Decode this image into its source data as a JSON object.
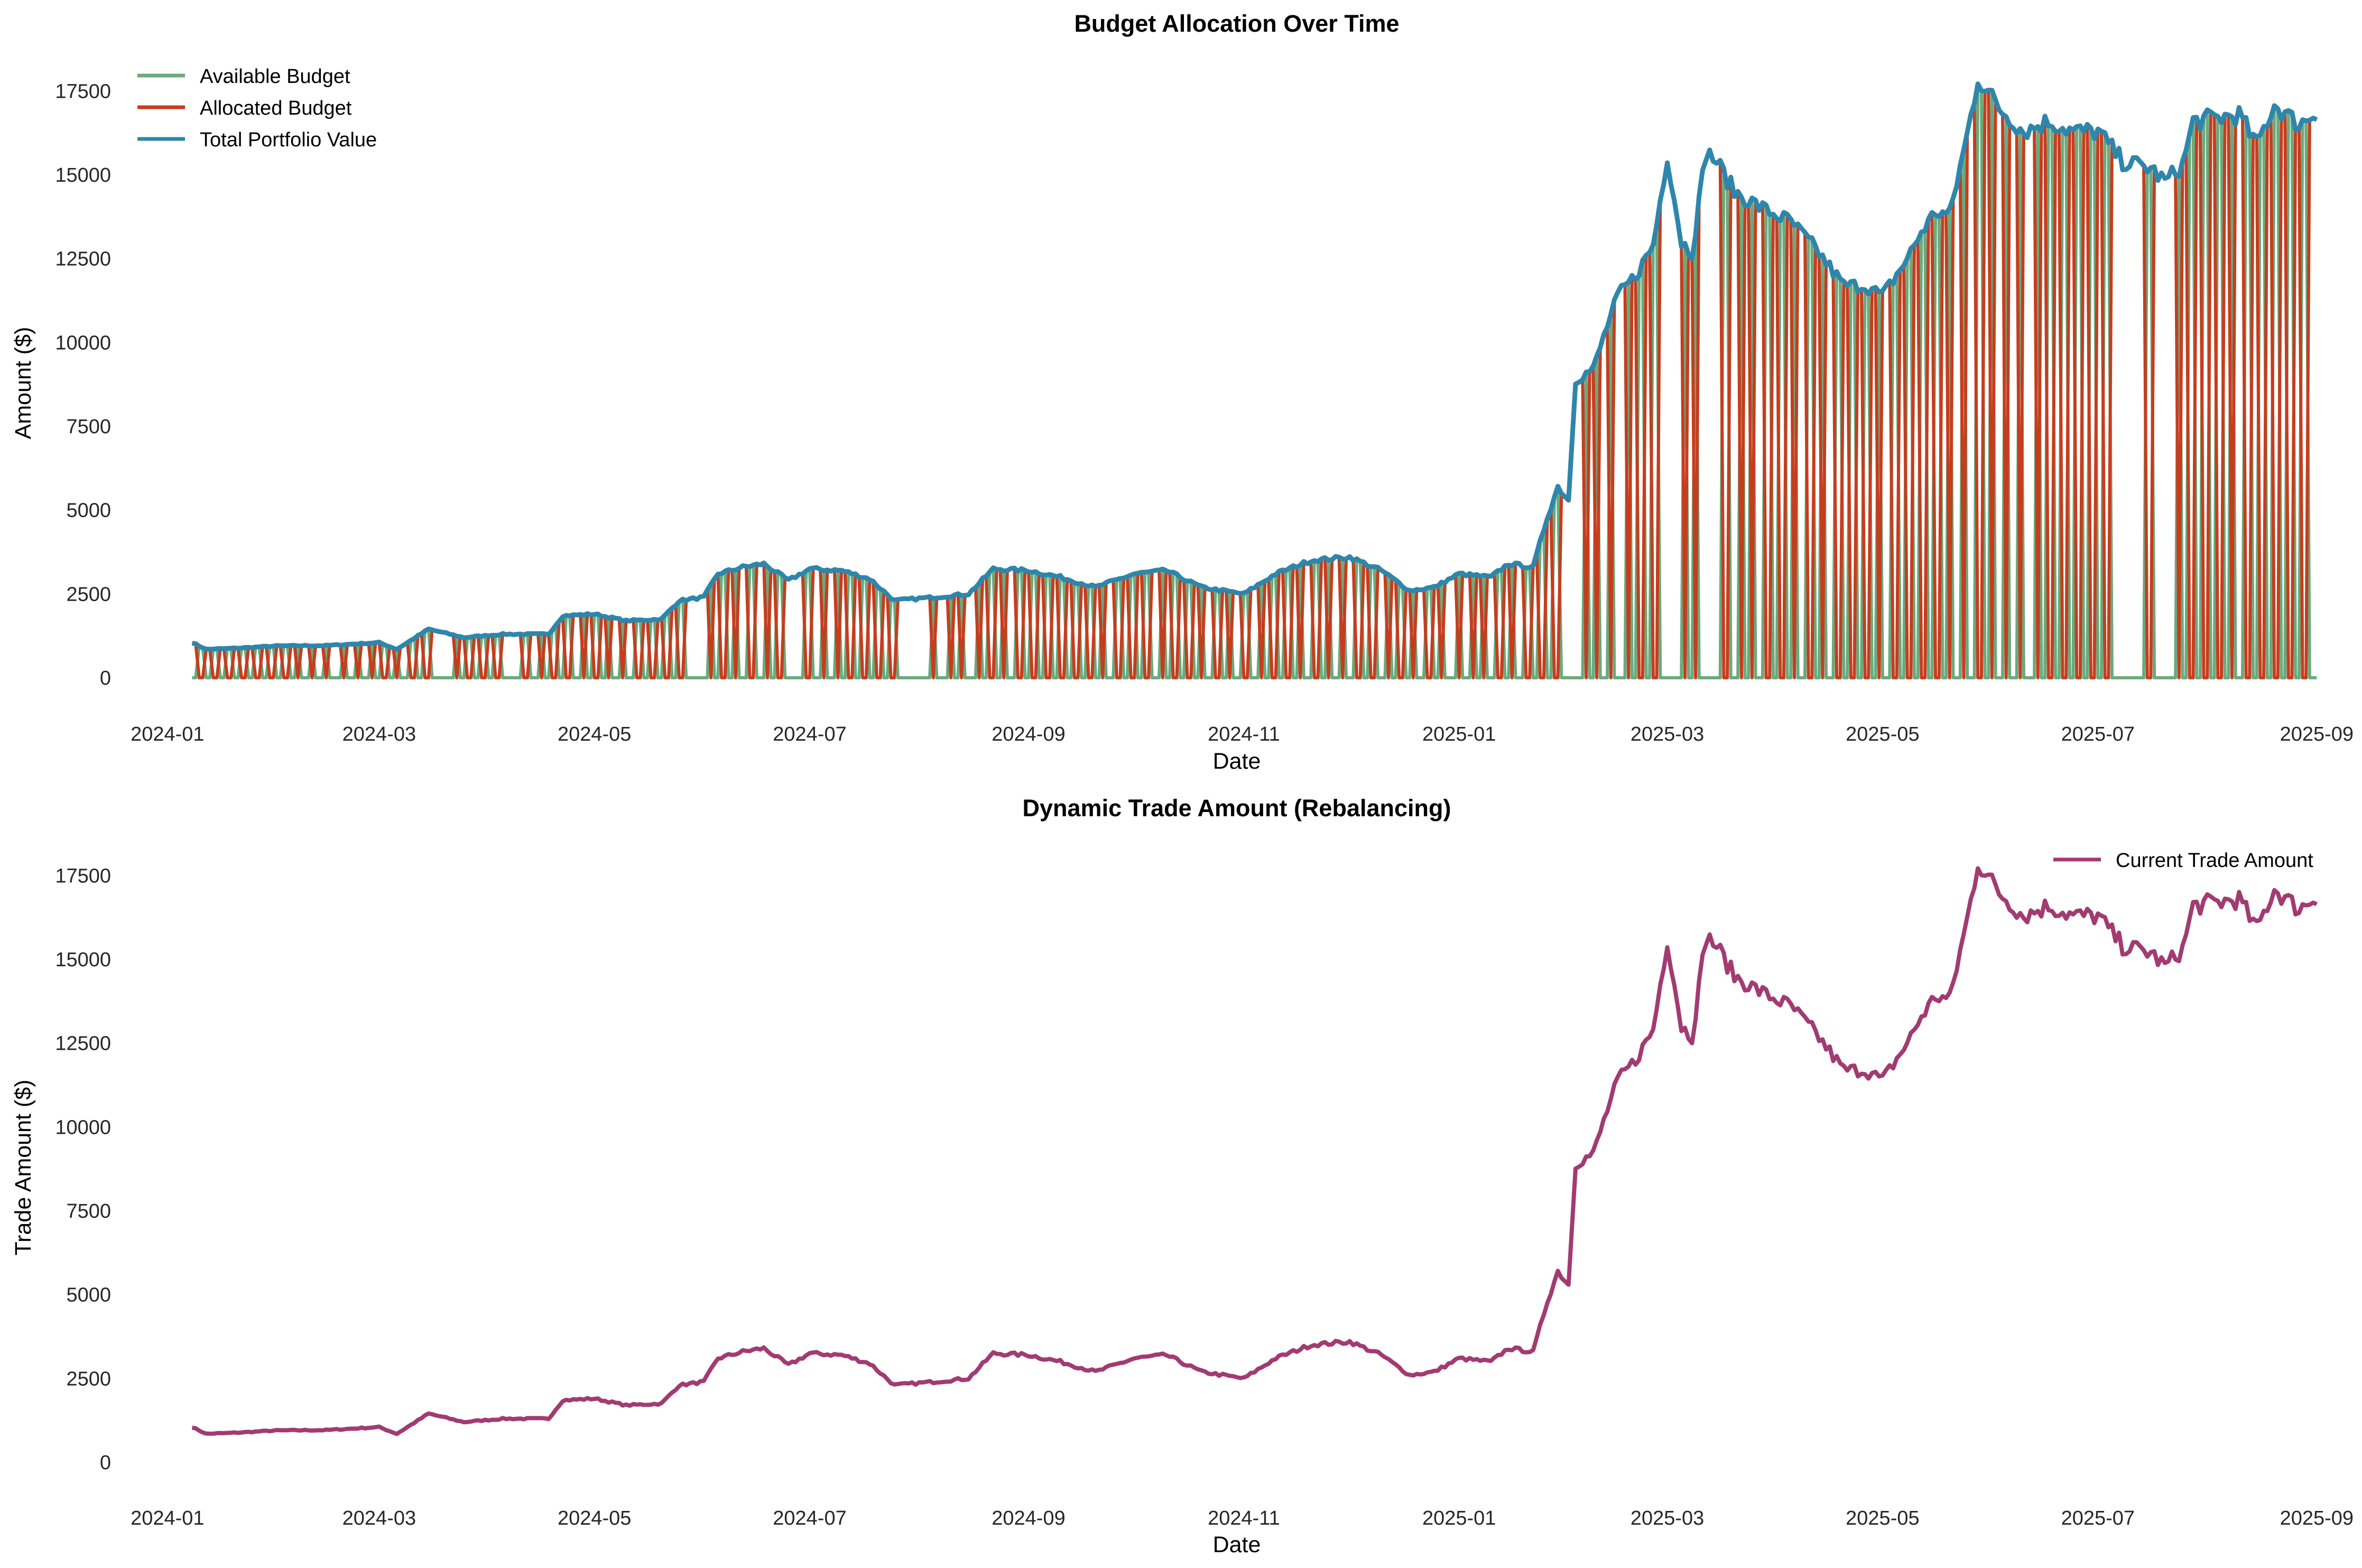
{
  "colors": {
    "available": "#6aaa7e",
    "allocated": "#c63d1e",
    "total": "#2e86ab",
    "trade": "#a23b72",
    "text": "#262626"
  },
  "chart_data": [
    {
      "type": "line",
      "title": "Budget Allocation Over Time",
      "xlabel": "Date",
      "ylabel": "Amount ($)",
      "x_ticks": [
        "2024-01",
        "2024-03",
        "2024-05",
        "2024-07",
        "2024-09",
        "2024-11",
        "2025-01",
        "2025-03",
        "2025-05",
        "2025-07",
        "2025-09"
      ],
      "y_ticks": [
        "0",
        "2500",
        "5000",
        "7500",
        "10000",
        "12500",
        "15000",
        "17500"
      ],
      "xlim": [
        "2023-12-22",
        "2025-09-08"
      ],
      "ylim": [
        -900,
        18800
      ],
      "grid": false,
      "legend_position": "top-left",
      "legend": [
        "Available Budget",
        "Allocated Budget",
        "Total Portfolio Value"
      ],
      "series": [
        {
          "name": "Available Budget",
          "note_pattern": "complementary"
        },
        {
          "name": "Allocated Budget"
        },
        {
          "name": "Total Portfolio Value"
        }
      ],
      "total_portfolio_value": [
        [
          "2024-01-08",
          1050
        ],
        [
          "2024-01-12",
          850
        ],
        [
          "2024-01-20",
          880
        ],
        [
          "2024-02-01",
          950
        ],
        [
          "2024-02-15",
          960
        ],
        [
          "2024-03-01",
          1050
        ],
        [
          "2024-03-06",
          850
        ],
        [
          "2024-03-15",
          1450
        ],
        [
          "2024-03-25",
          1200
        ],
        [
          "2024-04-05",
          1300
        ],
        [
          "2024-04-18",
          1300
        ],
        [
          "2024-04-22",
          1850
        ],
        [
          "2024-05-01",
          1900
        ],
        [
          "2024-05-10",
          1700
        ],
        [
          "2024-05-20",
          1750
        ],
        [
          "2024-05-25",
          2300
        ],
        [
          "2024-06-01",
          2400
        ],
        [
          "2024-06-05",
          3100
        ],
        [
          "2024-06-12",
          3300
        ],
        [
          "2024-06-18",
          3400
        ],
        [
          "2024-06-25",
          2900
        ],
        [
          "2024-07-01",
          3250
        ],
        [
          "2024-07-10",
          3200
        ],
        [
          "2024-07-18",
          2950
        ],
        [
          "2024-07-25",
          2300
        ],
        [
          "2024-08-05",
          2400
        ],
        [
          "2024-08-15",
          2500
        ],
        [
          "2024-08-22",
          3250
        ],
        [
          "2024-09-01",
          3200
        ],
        [
          "2024-09-10",
          3000
        ],
        [
          "2024-09-20",
          2700
        ],
        [
          "2024-10-01",
          3100
        ],
        [
          "2024-10-10",
          3200
        ],
        [
          "2024-10-20",
          2700
        ],
        [
          "2024-11-01",
          2500
        ],
        [
          "2024-11-10",
          3100
        ],
        [
          "2024-11-20",
          3500
        ],
        [
          "2024-12-01",
          3600
        ],
        [
          "2024-12-10",
          3200
        ],
        [
          "2024-12-18",
          2600
        ],
        [
          "2024-12-25",
          2700
        ],
        [
          "2025-01-01",
          3100
        ],
        [
          "2025-01-10",
          3000
        ],
        [
          "2025-01-15",
          3400
        ],
        [
          "2025-01-22",
          3300
        ],
        [
          "2025-01-26",
          4800
        ],
        [
          "2025-01-29",
          5700
        ],
        [
          "2025-02-01",
          5300
        ],
        [
          "2025-02-03",
          8900
        ],
        [
          "2025-02-08",
          9200
        ],
        [
          "2025-02-12",
          10500
        ],
        [
          "2025-02-15",
          11400
        ],
        [
          "2025-02-20",
          12000
        ],
        [
          "2025-02-25",
          12900
        ],
        [
          "2025-03-01",
          15600
        ],
        [
          "2025-03-05",
          13000
        ],
        [
          "2025-03-08",
          12700
        ],
        [
          "2025-03-12",
          15700
        ],
        [
          "2025-03-15",
          15400
        ],
        [
          "2025-03-20",
          14500
        ],
        [
          "2025-03-28",
          14000
        ],
        [
          "2025-04-05",
          13600
        ],
        [
          "2025-04-12",
          12800
        ],
        [
          "2025-04-20",
          11700
        ],
        [
          "2025-04-26",
          11700
        ],
        [
          "2025-05-01",
          11400
        ],
        [
          "2025-05-08",
          12500
        ],
        [
          "2025-05-12",
          13300
        ],
        [
          "2025-05-16",
          13900
        ],
        [
          "2025-05-20",
          13800
        ],
        [
          "2025-05-25",
          16200
        ],
        [
          "2025-05-28",
          17900
        ],
        [
          "2025-06-03",
          17000
        ],
        [
          "2025-06-10",
          16300
        ],
        [
          "2025-06-17",
          16600
        ],
        [
          "2025-06-24",
          16300
        ],
        [
          "2025-07-01",
          16300
        ],
        [
          "2025-07-08",
          15400
        ],
        [
          "2025-07-16",
          15200
        ],
        [
          "2025-07-20",
          14800
        ],
        [
          "2025-07-25",
          15300
        ],
        [
          "2025-07-28",
          16600
        ],
        [
          "2025-08-10",
          16800
        ],
        [
          "2025-08-15",
          15900
        ],
        [
          "2025-08-20",
          17100
        ],
        [
          "2025-08-27",
          16500
        ],
        [
          "2025-09-01",
          16900
        ]
      ]
    },
    {
      "type": "line",
      "title": "Dynamic Trade Amount (Rebalancing)",
      "xlabel": "Date",
      "ylabel": "Trade Amount ($)",
      "x_ticks": [
        "2024-01",
        "2024-03",
        "2024-05",
        "2024-07",
        "2024-09",
        "2024-11",
        "2025-01",
        "2025-03",
        "2025-05",
        "2025-07",
        "2025-09"
      ],
      "y_ticks": [
        "0",
        "2500",
        "5000",
        "7500",
        "10000",
        "12500",
        "15000",
        "17500"
      ],
      "xlim": [
        "2023-12-22",
        "2025-09-08"
      ],
      "ylim": [
        -900,
        18800
      ],
      "grid": false,
      "legend_position": "top-right",
      "legend": [
        "Current Trade Amount"
      ],
      "series": [
        {
          "name": "Current Trade Amount",
          "same_as": "Total Portfolio Value"
        }
      ]
    }
  ]
}
